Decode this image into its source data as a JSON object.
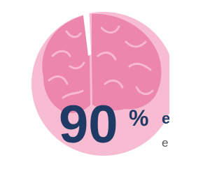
{
  "figure": {
    "number": "90",
    "unit": "%",
    "side_texts": [
      "e",
      "e"
    ]
  }
}
